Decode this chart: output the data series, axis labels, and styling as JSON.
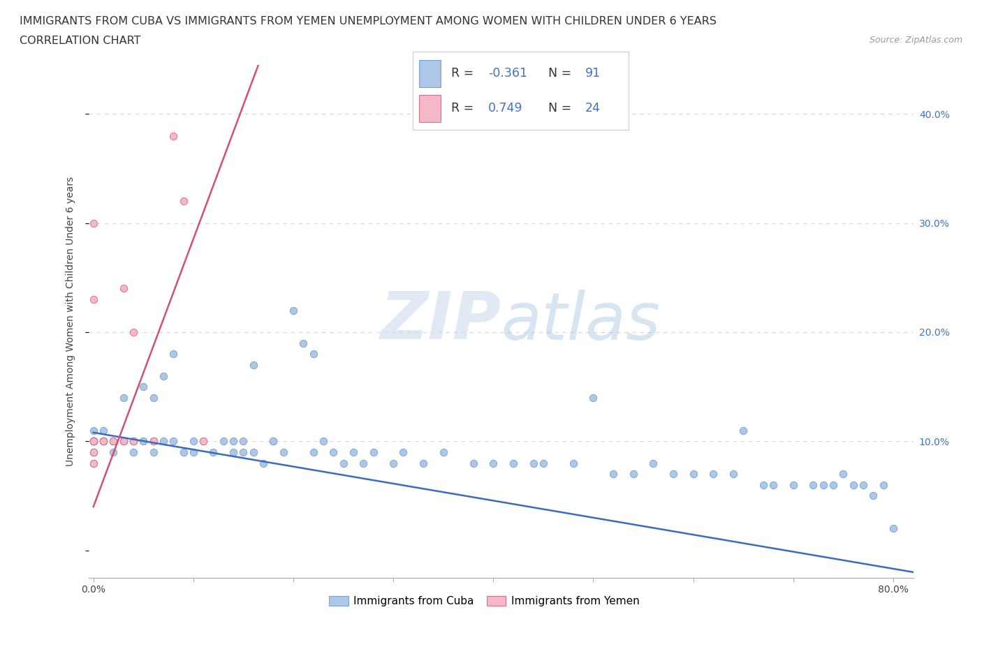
{
  "title_line1": "IMMIGRANTS FROM CUBA VS IMMIGRANTS FROM YEMEN UNEMPLOYMENT AMONG WOMEN WITH CHILDREN UNDER 6 YEARS",
  "title_line2": "CORRELATION CHART",
  "source_text": "Source: ZipAtlas.com",
  "ylabel": "Unemployment Among Women with Children Under 6 years",
  "xlim": [
    -0.005,
    0.82
  ],
  "ylim": [
    -0.025,
    0.445
  ],
  "cuba_color": "#aec6e8",
  "cuba_edge_color": "#7ba7d0",
  "yemen_color": "#f4b8c8",
  "yemen_edge_color": "#e0708a",
  "cuba_line_color": "#3a6bbf",
  "yemen_line_color": "#d45070",
  "cuba_trend_x0": 0.0,
  "cuba_trend_y0": 0.108,
  "cuba_trend_x1": 0.82,
  "cuba_trend_y1": -0.02,
  "yemen_trend_x0": 0.0,
  "yemen_trend_y0": 0.04,
  "yemen_trend_x1": 0.165,
  "yemen_trend_y1": 0.445,
  "watermark_zip": "ZIP",
  "watermark_atlas": "atlas",
  "background_color": "#ffffff",
  "grid_color": "#d8d8d8",
  "right_tick_color": "#4472c4",
  "title_fontsize": 11.5,
  "axis_label_fontsize": 10,
  "tick_fontsize": 10,
  "source_fontsize": 9
}
